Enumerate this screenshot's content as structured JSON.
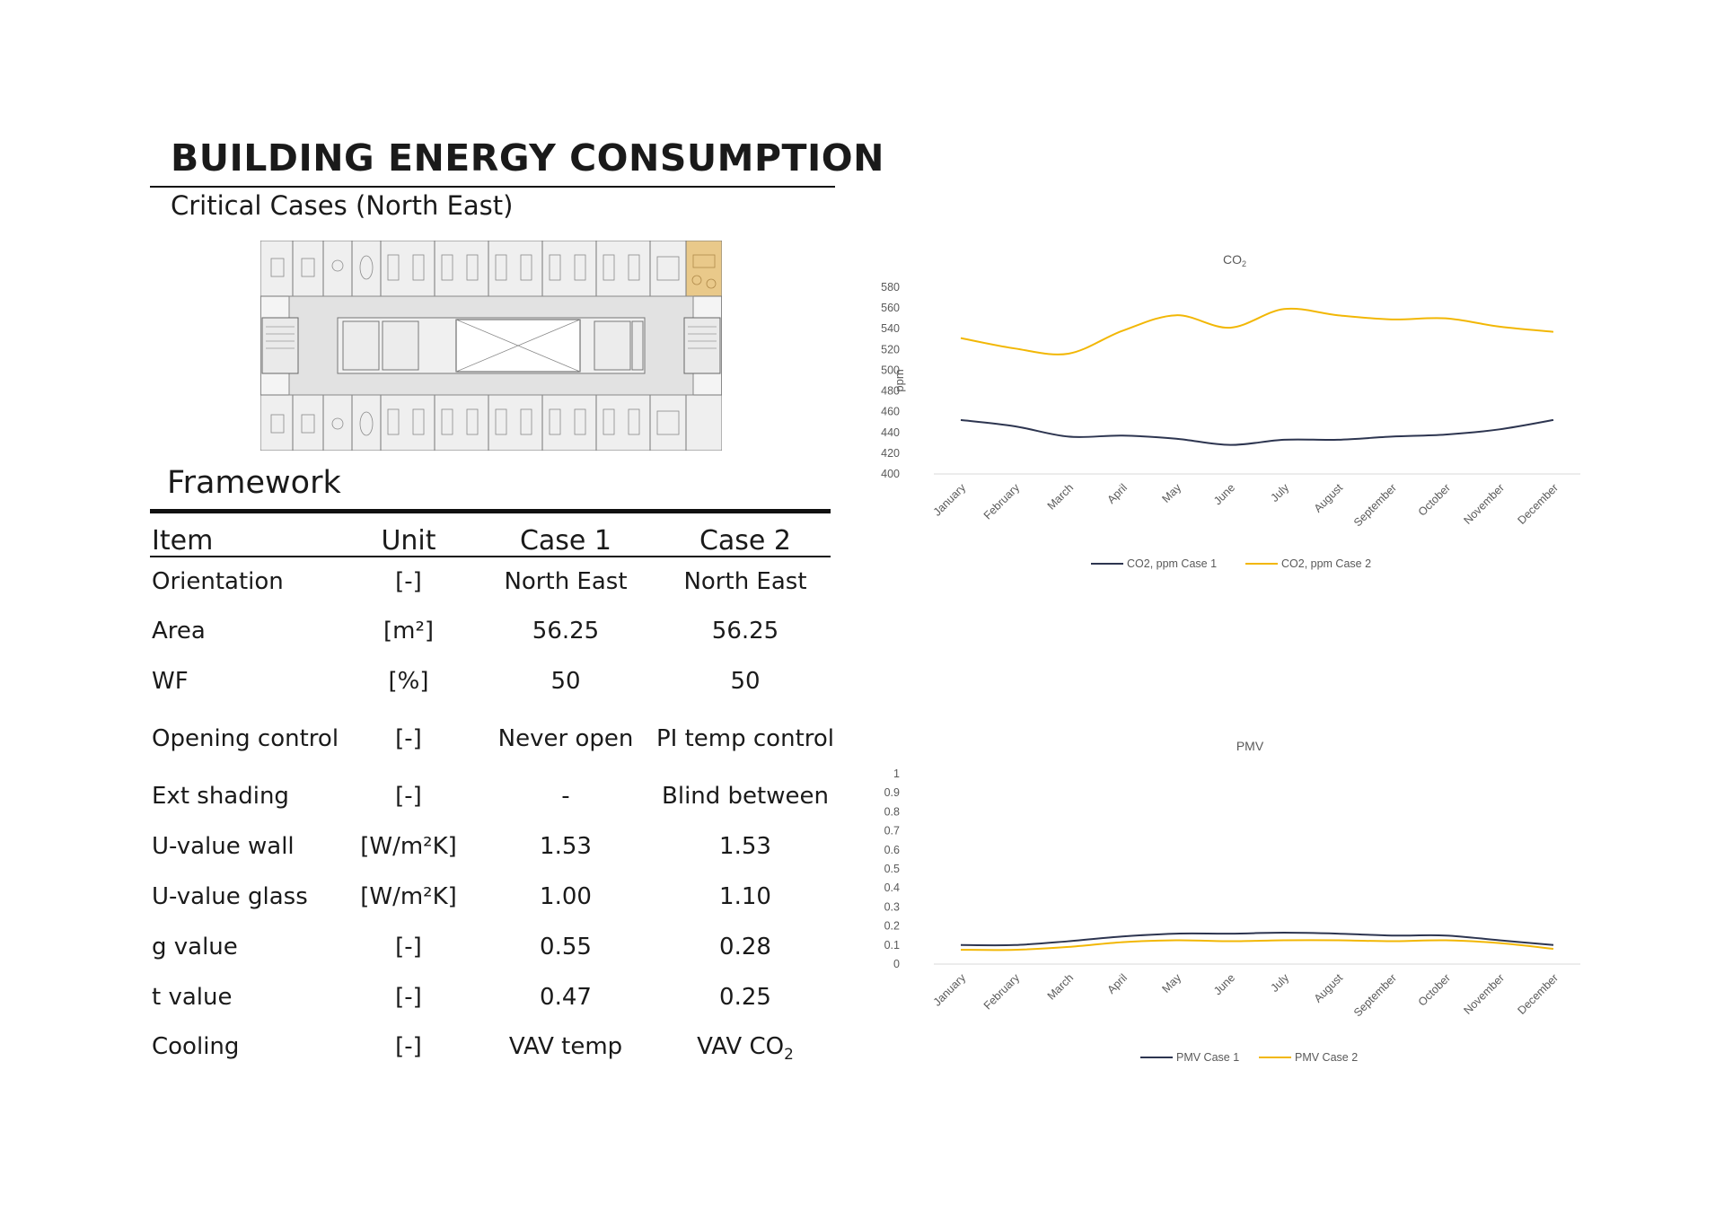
{
  "header": {
    "title": "BUILDING ENERGY CONSUMPTION",
    "subtitle": "Critical Cases (North East)"
  },
  "framework": {
    "heading": "Framework",
    "columns": [
      "Item",
      "Unit",
      "Case 1",
      "Case 2"
    ],
    "rows": [
      {
        "item": "Orientation",
        "unit": "[-]",
        "case1": "North East",
        "case2": "North East"
      },
      {
        "item": "Area",
        "unit": "[m²]",
        "case1": "56.25",
        "case2": "56.25"
      },
      {
        "item": "WF",
        "unit": "[%]",
        "case1": "50",
        "case2": "50"
      },
      {
        "item": "Opening control",
        "unit": "[-]",
        "case1": "Never open",
        "case2": "PI temp control"
      },
      {
        "item": "Ext shading",
        "unit": "[-]",
        "case1": "-",
        "case2": "Blind between"
      },
      {
        "item": "U-value wall",
        "unit": "[W/m²K]",
        "case1": "1.53",
        "case2": "1.53"
      },
      {
        "item": "U-value glass",
        "unit": "[W/m²K]",
        "case1": "1.00",
        "case2": "1.10"
      },
      {
        "item": "g value",
        "unit": "[-]",
        "case1": "0.55",
        "case2": "0.28"
      },
      {
        "item": "t value",
        "unit": "[-]",
        "case1": "0.47",
        "case2": "0.25"
      },
      {
        "item": "Cooling",
        "unit": "[-]",
        "case1": "VAV temp",
        "case2": "VAV CO",
        "case2_sub": "2"
      }
    ]
  },
  "floorplan": {
    "highlight_color": "#e9c98a"
  },
  "colors": {
    "case1": "#2d3550",
    "case2": "#f2b705",
    "gridline": "#d9d9d9",
    "axis_text": "#595959"
  },
  "chart_data": [
    {
      "type": "line",
      "title": "CO",
      "title_sub": "2",
      "ylabel": "ppm",
      "xlabel": "",
      "ylim": [
        400,
        580
      ],
      "yticks": [
        400,
        420,
        440,
        460,
        480,
        500,
        520,
        540,
        560,
        580
      ],
      "grid": false,
      "legend": "bottom",
      "categories": [
        "January",
        "February",
        "March",
        "April",
        "May",
        "June",
        "July",
        "August",
        "September",
        "October",
        "November",
        "December"
      ],
      "series": [
        {
          "name": "CO2, ppm Case 1",
          "color": "#2d3550",
          "values": [
            452,
            446,
            436,
            437,
            434,
            428,
            433,
            433,
            436,
            438,
            443,
            452
          ]
        },
        {
          "name": "CO2, ppm Case 2",
          "color": "#f2b705",
          "values": [
            531,
            521,
            516,
            538,
            553,
            541,
            559,
            553,
            549,
            550,
            542,
            537
          ]
        }
      ]
    },
    {
      "type": "line",
      "title": "PMV",
      "title_sub": "",
      "ylabel": "",
      "xlabel": "",
      "ylim": [
        0,
        1
      ],
      "yticks": [
        0,
        0.1,
        0.2,
        0.3,
        0.4,
        0.5,
        0.6,
        0.7,
        0.8,
        0.9,
        1
      ],
      "grid": false,
      "legend": "bottom",
      "categories": [
        "January",
        "February",
        "March",
        "April",
        "May",
        "June",
        "July",
        "August",
        "September",
        "October",
        "November",
        "December"
      ],
      "series": [
        {
          "name": "PMV Case 1",
          "color": "#2d3550",
          "values": [
            0.1,
            0.1,
            0.12,
            0.145,
            0.16,
            0.16,
            0.165,
            0.16,
            0.15,
            0.15,
            0.125,
            0.1
          ]
        },
        {
          "name": "PMV Case 2",
          "color": "#f2b705",
          "values": [
            0.075,
            0.075,
            0.09,
            0.115,
            0.125,
            0.12,
            0.125,
            0.125,
            0.12,
            0.125,
            0.11,
            0.08
          ]
        }
      ]
    }
  ]
}
